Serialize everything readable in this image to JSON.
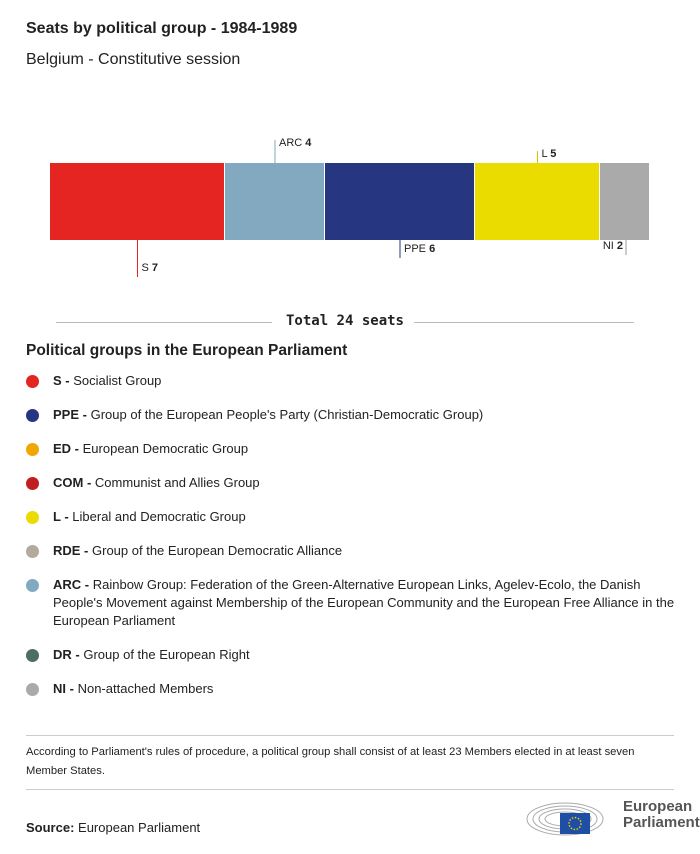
{
  "header": {
    "title": "Seats by political group - 1984-1989",
    "subtitle": "Belgium - Constitutive session"
  },
  "chart_data": {
    "type": "bar",
    "orientation": "stacked-horizontal",
    "categories": [
      "S",
      "ARC",
      "PPE",
      "L",
      "NI"
    ],
    "values": [
      7,
      4,
      6,
      5,
      2
    ],
    "colors": [
      "#e42522",
      "#82a9bf",
      "#263680",
      "#ebdc00",
      "#aaaaaa"
    ],
    "label_side": [
      "below",
      "above",
      "below",
      "above",
      "below"
    ],
    "total_label": "Total 24 seats",
    "total": 24
  },
  "legend": {
    "title": "Political groups in the European Parliament",
    "items": [
      {
        "abbr": "S -",
        "name": "Socialist Group",
        "color": "#e42522"
      },
      {
        "abbr": "PPE -",
        "name": "Group of the European People's Party (Christian-Democratic Group)",
        "color": "#263680"
      },
      {
        "abbr": "ED -",
        "name": "European Democratic Group",
        "color": "#f0a800"
      },
      {
        "abbr": "COM -",
        "name": "Communist and Allies Group",
        "color": "#c11f1f"
      },
      {
        "abbr": "L -",
        "name": "Liberal and Democratic Group",
        "color": "#ebdc00"
      },
      {
        "abbr": "RDE -",
        "name": "Group of the European Democratic Alliance",
        "color": "#b2aa9c"
      },
      {
        "abbr": "ARC -",
        "name": "Rainbow Group: Federation of the Green-Alternative European Links, Agelev-Ecolo, the Danish People's Movement against Membership of the European Community and the European Free Alliance in the European Parliament",
        "color": "#82a9bf"
      },
      {
        "abbr": "DR -",
        "name": "Group of the European Right",
        "color": "#4e6e62"
      },
      {
        "abbr": "NI -",
        "name": "Non-attached Members",
        "color": "#aaaaaa"
      }
    ]
  },
  "note": "According to Parliament's rules of procedure, a political group shall consist of at least 23 Members elected in at least seven Member States.",
  "source": {
    "label": "Source:",
    "value": "European Parliament"
  },
  "logo": {
    "text": "European Parliament"
  }
}
